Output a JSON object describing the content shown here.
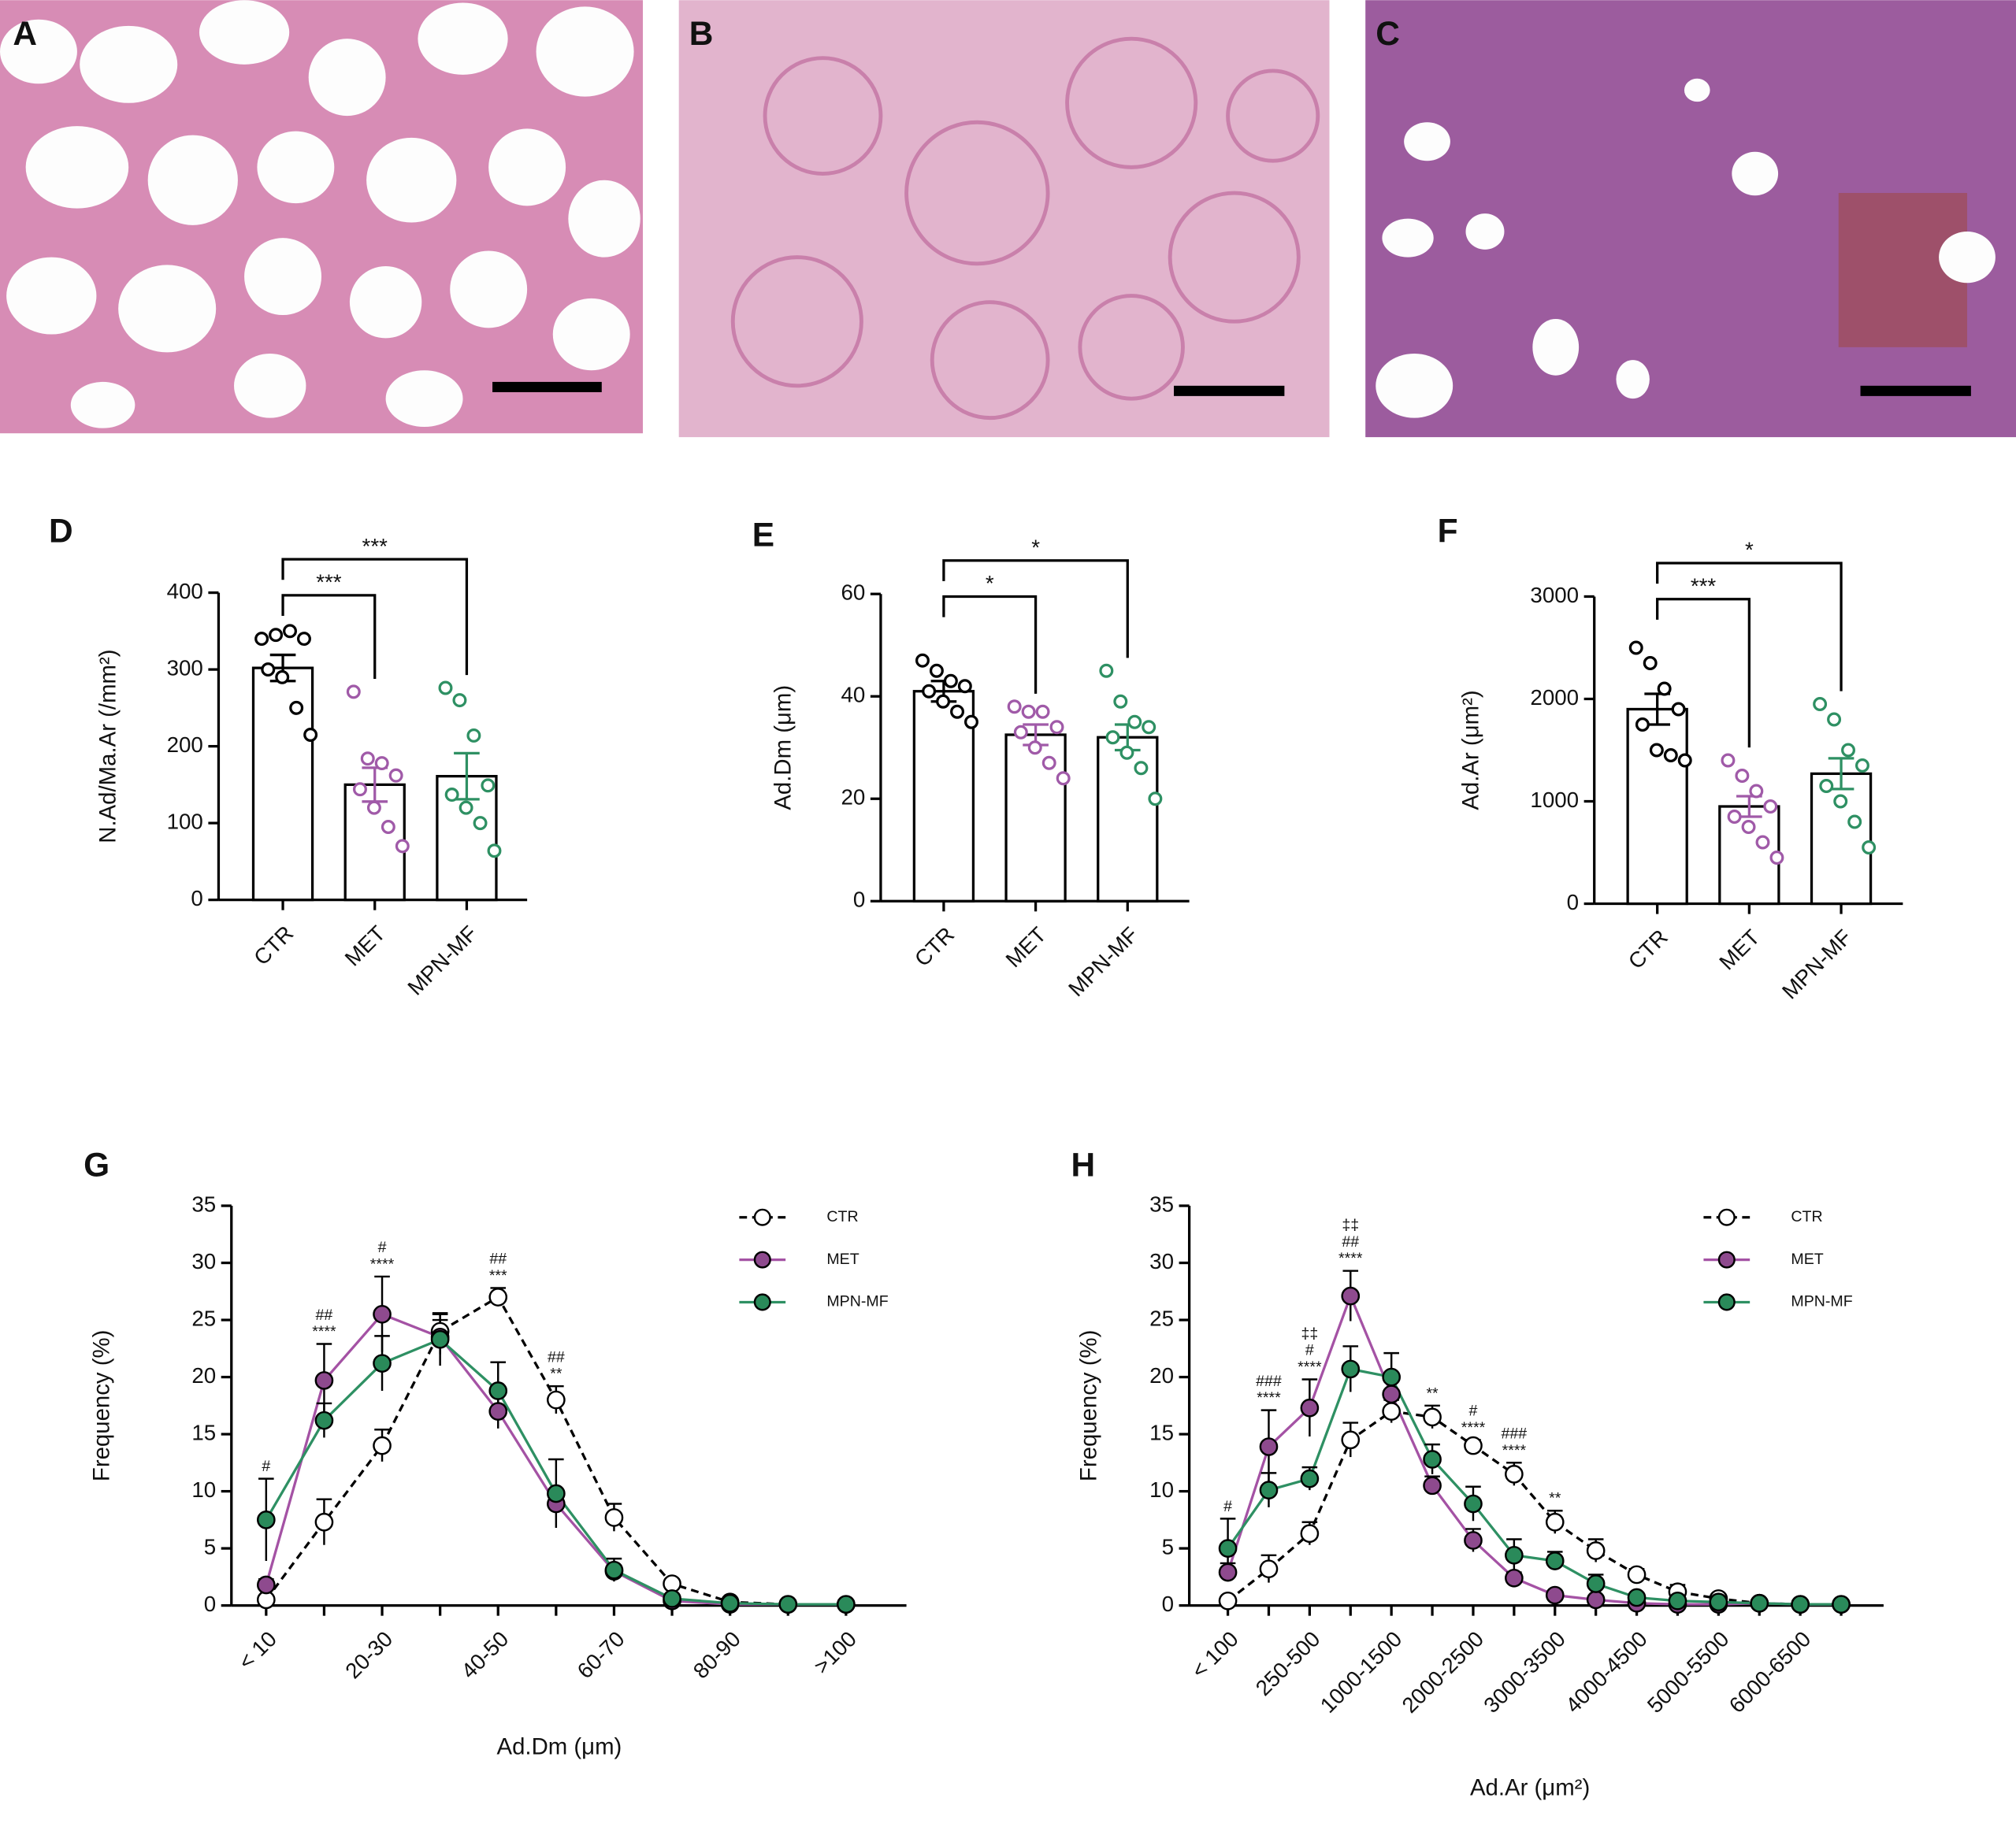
{
  "panels": [
    {
      "label": "A"
    },
    {
      "label": "B"
    },
    {
      "label": "C"
    }
  ],
  "chart_data": [
    {
      "type": "bar",
      "label": "D",
      "y_label": "N.Ad/Ma.Ar (/mm²)",
      "categories": [
        "CTR",
        "MET",
        "MPN-MF"
      ],
      "values": [
        302,
        150,
        161
      ],
      "errors": [
        17,
        22,
        30
      ],
      "colors": [
        "#000000",
        "#a05aa8",
        "#2e9063"
      ],
      "points": [
        [
          340,
          345,
          350,
          340,
          300,
          290,
          250,
          215
        ],
        [
          271,
          184,
          178,
          162,
          144,
          120,
          95,
          70
        ],
        [
          276,
          260,
          214,
          149,
          137,
          120,
          100,
          64
        ]
      ],
      "ylim": [
        0,
        400
      ],
      "yticks": [
        0,
        100,
        200,
        300,
        400
      ],
      "comparisons": [
        {
          "groups": [
            "CTR",
            "MET"
          ],
          "label": "***"
        },
        {
          "groups": [
            "CTR",
            "MPN-MF"
          ],
          "label": "***"
        }
      ]
    },
    {
      "type": "bar",
      "label": "E",
      "y_label": "Ad.Dm (μm)",
      "categories": [
        "CTR",
        "MET",
        "MPN-MF"
      ],
      "values": [
        41,
        32.5,
        32
      ],
      "errors": [
        2,
        2,
        2.5
      ],
      "colors": [
        "#000000",
        "#a05aa8",
        "#2e9063"
      ],
      "points": [
        [
          47,
          45,
          43,
          42,
          41,
          39,
          37,
          35
        ],
        [
          38,
          37,
          37,
          34,
          33,
          30,
          27,
          24
        ],
        [
          45,
          39,
          35,
          34,
          32,
          29,
          26,
          20
        ]
      ],
      "ylim": [
        0,
        60
      ],
      "yticks": [
        0,
        20,
        40,
        60
      ],
      "comparisons": [
        {
          "groups": [
            "CTR",
            "MET"
          ],
          "label": "*"
        },
        {
          "groups": [
            "CTR",
            "MPN-MF"
          ],
          "label": "*"
        }
      ]
    },
    {
      "type": "bar",
      "label": "F",
      "y_label": "Ad.Ar (μm²)",
      "categories": [
        "CTR",
        "MET",
        "MPN-MF"
      ],
      "values": [
        1900,
        950,
        1270
      ],
      "errors": [
        150,
        100,
        150
      ],
      "colors": [
        "#000000",
        "#a05aa8",
        "#2e9063"
      ],
      "points": [
        [
          2500,
          2350,
          2100,
          1900,
          1750,
          1500,
          1450,
          1400
        ],
        [
          1400,
          1250,
          1100,
          950,
          850,
          750,
          600,
          450
        ],
        [
          1950,
          1800,
          1500,
          1350,
          1150,
          1000,
          800,
          550
        ]
      ],
      "ylim": [
        0,
        3000
      ],
      "yticks": [
        0,
        1000,
        2000,
        3000
      ],
      "comparisons": [
        {
          "groups": [
            "CTR",
            "MET"
          ],
          "label": "***"
        },
        {
          "groups": [
            "CTR",
            "MPN-MF"
          ],
          "label": "*"
        }
      ]
    },
    {
      "type": "line",
      "label": "G",
      "x_label": "Ad.Dm (μm)",
      "y_label": "Frequency (%)",
      "categories": [
        "< 10",
        null,
        "20-30",
        null,
        "40-50",
        null,
        "60-70",
        null,
        "80-90",
        null,
        ">100"
      ],
      "series": [
        {
          "name": "CTR",
          "color": "#000000",
          "marker_fill": "#ffffff",
          "dash": true,
          "values": [
            0.5,
            7.3,
            14,
            24,
            27,
            18,
            7.7,
            1.9,
            0.3,
            0.1,
            0.1
          ],
          "errors": [
            0.3,
            2,
            1.4,
            1.5,
            0.8,
            1.2,
            1.2,
            0.4,
            0.1,
            0,
            0
          ]
        },
        {
          "name": "MET",
          "color": "#a452a4",
          "marker_fill": "#8e4a8e",
          "dash": false,
          "values": [
            1.8,
            19.7,
            25.5,
            23.5,
            17,
            8.9,
            3.0,
            0.4,
            0.1,
            0.1,
            0.1
          ],
          "errors": [
            0.5,
            3.2,
            3.3,
            1.5,
            1.5,
            0.8,
            0.5,
            0.2,
            0.1,
            0,
            0
          ]
        },
        {
          "name": "MPN-MF",
          "color": "#2e9063",
          "marker_fill": "#2a8a5a",
          "dash": false,
          "values": [
            7.5,
            16.2,
            21.2,
            23.3,
            18.8,
            9.8,
            3.1,
            0.6,
            0.2,
            0.1,
            0.1
          ],
          "errors": [
            3.6,
            1.5,
            2.4,
            2.3,
            2.5,
            3.0,
            1.0,
            0.3,
            0.1,
            0,
            0
          ]
        }
      ],
      "annotations": [
        [
          "#"
        ],
        [
          "##",
          "****"
        ],
        [
          "#",
          "****"
        ],
        null,
        [
          "##",
          "***"
        ],
        [
          "##",
          "**"
        ],
        null,
        null,
        null,
        null,
        null
      ],
      "ylim": [
        0,
        35
      ],
      "yticks": [
        0,
        5,
        10,
        15,
        20,
        25,
        30,
        35
      ],
      "legend": "upper right"
    },
    {
      "type": "line",
      "label": "H",
      "x_label": "Ad.Ar (μm²)",
      "y_label": "Frequency (%)",
      "categories": [
        "< 100",
        null,
        "250-500",
        null,
        "1000-1500",
        null,
        "2000-2500",
        null,
        "3000-3500",
        null,
        "4000-4500",
        null,
        "5000-5500",
        null,
        "6000-6500",
        null
      ],
      "series": [
        {
          "name": "CTR",
          "color": "#000000",
          "marker_fill": "#ffffff",
          "dash": true,
          "values": [
            0.4,
            3.2,
            6.3,
            14.5,
            17,
            16.5,
            14,
            11.5,
            7.3,
            4.8,
            2.7,
            1.2,
            0.6,
            0.2,
            0.1,
            0.1
          ],
          "errors": [
            0.2,
            1.2,
            1,
            1.5,
            1,
            1,
            0.5,
            1,
            1,
            1,
            0.5,
            0.6,
            0.3,
            0.1,
            0,
            0
          ]
        },
        {
          "name": "MET",
          "color": "#a452a4",
          "marker_fill": "#8e4a8e",
          "dash": false,
          "values": [
            2.9,
            13.9,
            17.3,
            27.1,
            18.5,
            10.5,
            5.7,
            2.4,
            0.9,
            0.5,
            0.2,
            0.1,
            0.1,
            0.2,
            0.1,
            0.1
          ],
          "errors": [
            0.8,
            3.2,
            2.5,
            2.2,
            1.5,
            0.8,
            1,
            0.5,
            0.2,
            0.2,
            0.1,
            0.1,
            0,
            0,
            0,
            0
          ]
        },
        {
          "name": "MPN-MF",
          "color": "#2e9063",
          "marker_fill": "#2a8a5a",
          "dash": false,
          "values": [
            5.0,
            10.1,
            11.1,
            20.7,
            20.0,
            12.8,
            8.9,
            4.4,
            3.9,
            1.9,
            0.7,
            0.4,
            0.3,
            0.2,
            0.1,
            0.1
          ],
          "errors": [
            2.6,
            1.5,
            1,
            2,
            2.1,
            1.3,
            1.5,
            1.4,
            0.8,
            0.8,
            0.3,
            0.2,
            0.1,
            0,
            0,
            0
          ]
        }
      ],
      "annotations": [
        [
          "#"
        ],
        [
          "###",
          "****"
        ],
        [
          "‡‡",
          "#",
          "****"
        ],
        [
          "‡‡",
          "##",
          "****"
        ],
        null,
        [
          "**"
        ],
        [
          "#",
          "****"
        ],
        [
          "###",
          "****"
        ],
        [
          "**"
        ],
        null,
        null,
        null,
        null,
        null,
        null,
        null
      ],
      "ylim": [
        0,
        35
      ],
      "yticks": [
        0,
        5,
        10,
        15,
        20,
        25,
        30,
        35
      ],
      "legend": "upper right"
    }
  ]
}
